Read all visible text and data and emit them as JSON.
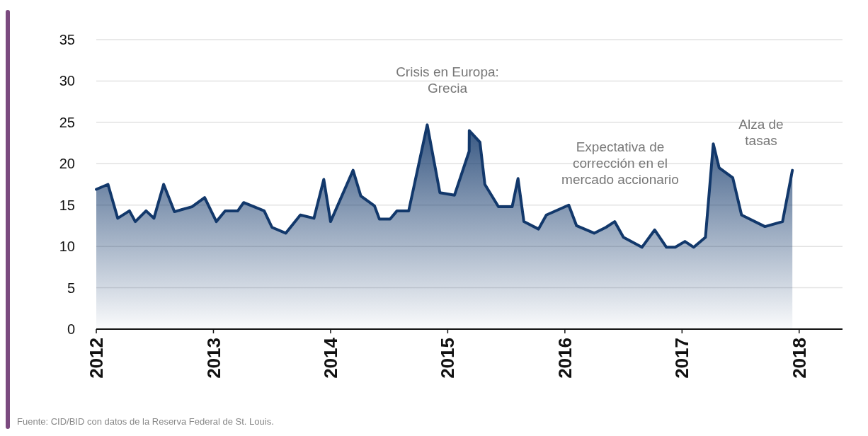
{
  "chart_data": {
    "type": "area",
    "x": [
      2012.0,
      2012.1,
      2012.183,
      2012.283,
      2012.333,
      2012.425,
      2012.492,
      2012.575,
      2012.667,
      2012.817,
      2012.925,
      2013.025,
      2013.1,
      2013.208,
      2013.258,
      2013.433,
      2013.5,
      2013.617,
      2013.742,
      2013.858,
      2013.942,
      2014.0,
      2014.192,
      2014.258,
      2014.375,
      2014.417,
      2014.508,
      2014.567,
      2014.667,
      2014.825,
      2014.933,
      2015.058,
      2015.183,
      2015.184,
      2015.275,
      2015.317,
      2015.433,
      2015.55,
      2015.6,
      2015.65,
      2015.775,
      2015.842,
      2016.033,
      2016.1,
      2016.25,
      2016.35,
      2016.425,
      2016.5,
      2016.658,
      2016.767,
      2016.867,
      2016.942,
      2017.025,
      2017.1,
      2017.2,
      2017.267,
      2017.317,
      2017.433,
      2017.508,
      2017.708,
      2017.858,
      2017.942
    ],
    "series": [
      {
        "color": "#12386b",
        "values": [
          16.9,
          17.5,
          13.4,
          14.3,
          13.0,
          14.3,
          13.4,
          17.5,
          14.2,
          14.8,
          15.9,
          13.0,
          14.3,
          14.3,
          15.3,
          14.3,
          12.3,
          11.6,
          13.8,
          13.4,
          18.1,
          13.0,
          19.2,
          16.1,
          14.9,
          13.3,
          13.3,
          14.3,
          14.3,
          24.7,
          16.5,
          16.2,
          21.5,
          24.0,
          22.6,
          17.5,
          14.8,
          14.8,
          18.2,
          13.0,
          12.1,
          13.8,
          15.0,
          12.5,
          11.6,
          12.3,
          13.0,
          11.1,
          9.9,
          12.0,
          9.9,
          9.9,
          10.6,
          9.9,
          11.1,
          22.4,
          19.5,
          18.3,
          13.8,
          12.4,
          13.0,
          19.2
        ]
      }
    ],
    "xlim": [
      2012,
      2018.37
    ],
    "xticks": [
      2012,
      2013,
      2014,
      2015,
      2016,
      2017,
      2018
    ],
    "ylim": [
      0,
      35
    ],
    "yticks": [
      0,
      5,
      10,
      15,
      20,
      25,
      30,
      35
    ],
    "grid": "y",
    "annotations": [
      "Crisis en Europa:\nGrecia",
      "Expectativa de\ncorrección en el\nmercado accionario",
      "Alza de\ntasas",
      "Fuente: CID/BID con datos de la Reserva Federal de St. Louis."
    ]
  }
}
